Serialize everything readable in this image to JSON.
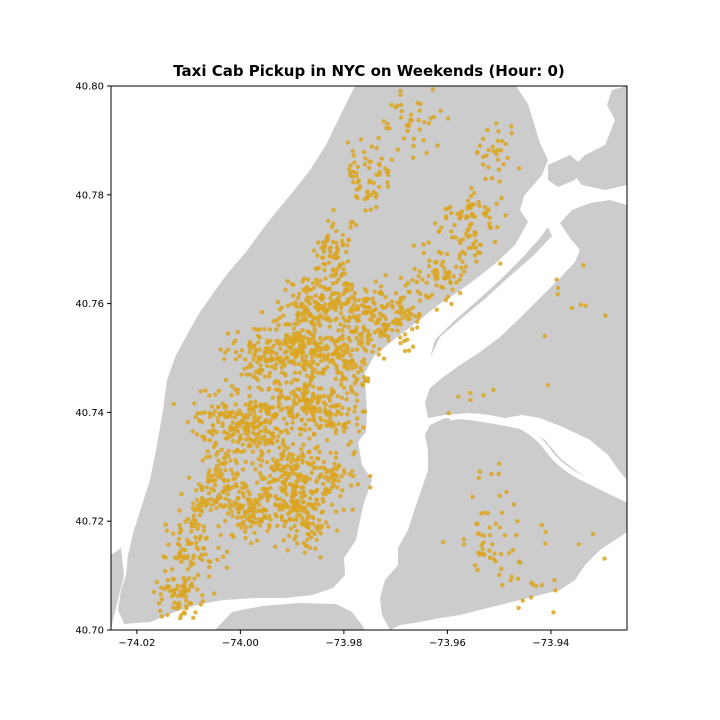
{
  "chart_data": {
    "type": "scatter",
    "title": "Taxi Cab Pickup in NYC on Weekends (Hour: 0)",
    "xlabel": "",
    "ylabel": "",
    "xlim": [
      -74.025,
      -73.9253
    ],
    "ylim": [
      40.7,
      40.8
    ],
    "x_ticks": [
      -74.02,
      -74.0,
      -73.98,
      -73.96,
      -73.94
    ],
    "x_tick_labels": [
      "−74.02",
      "−74.00",
      "−73.98",
      "−73.96",
      "−73.94"
    ],
    "y_ticks": [
      40.7,
      40.72,
      40.74,
      40.76,
      40.78,
      40.8
    ],
    "y_tick_labels": [
      "40.70",
      "40.72",
      "40.74",
      "40.76",
      "40.78",
      "40.80"
    ],
    "grid": false,
    "point_color": "#DAA520",
    "land_color": "#CCCCCC",
    "water_color": "#FFFFFF",
    "clusters": [
      {
        "x": -74.012,
        "y": 40.706,
        "spread": [
          0.003,
          0.003
        ],
        "count": 70
      },
      {
        "x": -74.008,
        "y": 40.716,
        "spread": [
          0.004,
          0.005
        ],
        "count": 90
      },
      {
        "x": -74.004,
        "y": 40.726,
        "spread": [
          0.004,
          0.004
        ],
        "count": 110
      },
      {
        "x": -73.997,
        "y": 40.722,
        "spread": [
          0.004,
          0.004
        ],
        "count": 110
      },
      {
        "x": -73.988,
        "y": 40.721,
        "spread": [
          0.004,
          0.004
        ],
        "count": 120
      },
      {
        "x": -73.991,
        "y": 40.729,
        "spread": [
          0.004,
          0.004
        ],
        "count": 120
      },
      {
        "x": -73.983,
        "y": 40.728,
        "spread": [
          0.004,
          0.004
        ],
        "count": 80
      },
      {
        "x": -74.003,
        "y": 40.738,
        "spread": [
          0.005,
          0.005
        ],
        "count": 120
      },
      {
        "x": -73.997,
        "y": 40.737,
        "spread": [
          0.004,
          0.004
        ],
        "count": 120
      },
      {
        "x": -73.989,
        "y": 40.742,
        "spread": [
          0.004,
          0.004
        ],
        "count": 130
      },
      {
        "x": -73.982,
        "y": 40.74,
        "spread": [
          0.004,
          0.004
        ],
        "count": 90
      },
      {
        "x": -73.996,
        "y": 40.75,
        "spread": [
          0.004,
          0.004
        ],
        "count": 110
      },
      {
        "x": -73.988,
        "y": 40.752,
        "spread": [
          0.004,
          0.004
        ],
        "count": 140
      },
      {
        "x": -73.98,
        "y": 40.75,
        "spread": [
          0.004,
          0.004
        ],
        "count": 110
      },
      {
        "x": -73.985,
        "y": 40.76,
        "spread": [
          0.005,
          0.004
        ],
        "count": 150
      },
      {
        "x": -73.977,
        "y": 40.758,
        "spread": [
          0.004,
          0.004
        ],
        "count": 110
      },
      {
        "x": -73.97,
        "y": 40.757,
        "spread": [
          0.004,
          0.004
        ],
        "count": 90
      },
      {
        "x": -73.982,
        "y": 40.77,
        "spread": [
          0.003,
          0.004
        ],
        "count": 70
      },
      {
        "x": -73.962,
        "y": 40.766,
        "spread": [
          0.004,
          0.004
        ],
        "count": 70
      },
      {
        "x": -73.955,
        "y": 40.775,
        "spread": [
          0.004,
          0.005
        ],
        "count": 80
      },
      {
        "x": -73.976,
        "y": 40.783,
        "spread": [
          0.004,
          0.005
        ],
        "count": 60
      },
      {
        "x": -73.966,
        "y": 40.793,
        "spread": [
          0.004,
          0.004
        ],
        "count": 40
      },
      {
        "x": -73.95,
        "y": 40.788,
        "spread": [
          0.003,
          0.004
        ],
        "count": 30
      },
      {
        "x": -73.951,
        "y": 40.716,
        "spread": [
          0.005,
          0.004
        ],
        "count": 45
      },
      {
        "x": -73.945,
        "y": 40.706,
        "spread": [
          0.004,
          0.003
        ],
        "count": 12
      },
      {
        "x": -73.952,
        "y": 40.728,
        "spread": [
          0.004,
          0.003
        ],
        "count": 8
      },
      {
        "x": -73.936,
        "y": 40.758,
        "spread": [
          0.008,
          0.007
        ],
        "count": 10
      },
      {
        "x": -73.955,
        "y": 40.742,
        "spread": [
          0.004,
          0.003
        ],
        "count": 6
      },
      {
        "x": -73.933,
        "y": 40.718,
        "spread": [
          0.006,
          0.008
        ],
        "count": 6
      }
    ]
  }
}
